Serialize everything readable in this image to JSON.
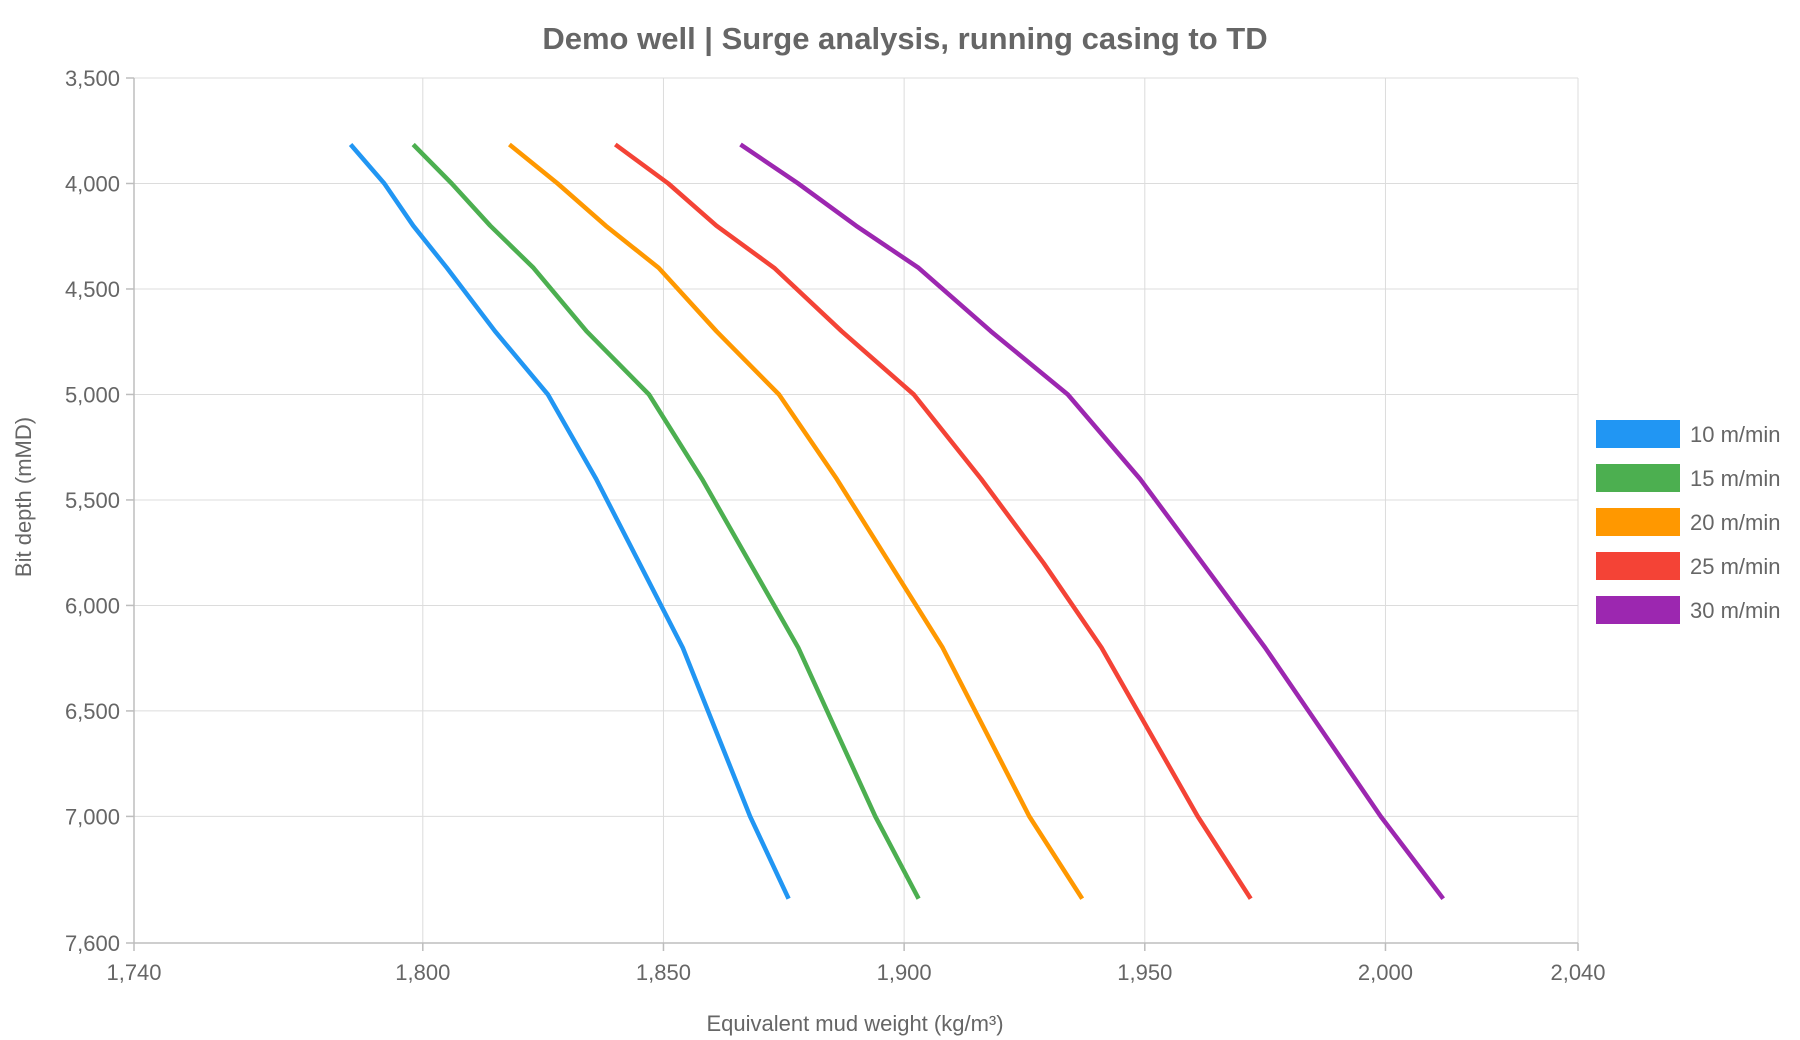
{
  "chart_data": {
    "type": "line",
    "title": "Demo well | Surge analysis, running casing to TD",
    "xlabel": "Equivalent mud weight (kg/m³)",
    "ylabel": "Bit depth (mMD)",
    "xlim": [
      1740,
      2040
    ],
    "ylim": [
      3500,
      7600
    ],
    "y_inverted": true,
    "grid": true,
    "legend_position": "right",
    "x_ticks": [
      1740,
      1800,
      1850,
      1900,
      1950,
      2000,
      2040
    ],
    "x_tick_labels": [
      "1,740",
      "1,800",
      "1,850",
      "1,900",
      "1,950",
      "2,000",
      "2,040"
    ],
    "y_ticks": [
      3500,
      4000,
      4500,
      5000,
      5500,
      6000,
      6500,
      7000,
      7600
    ],
    "y_tick_labels": [
      "3,500",
      "4,000",
      "4,500",
      "5,000",
      "5,500",
      "6,000",
      "6,500",
      "7,000",
      "7,600"
    ],
    "series": [
      {
        "name": "10 m/min",
        "color": "#2196F3",
        "points": [
          [
            1785,
            3815
          ],
          [
            1792,
            4000
          ],
          [
            1798,
            4200
          ],
          [
            1805,
            4400
          ],
          [
            1815,
            4700
          ],
          [
            1826,
            5000
          ],
          [
            1836,
            5400
          ],
          [
            1845,
            5800
          ],
          [
            1854,
            6200
          ],
          [
            1861,
            6600
          ],
          [
            1868,
            7000
          ],
          [
            1876,
            7390
          ]
        ]
      },
      {
        "name": "15 m/min",
        "color": "#4CAF50",
        "points": [
          [
            1798,
            3815
          ],
          [
            1806,
            4000
          ],
          [
            1814,
            4200
          ],
          [
            1823,
            4400
          ],
          [
            1834,
            4700
          ],
          [
            1847,
            5000
          ],
          [
            1858,
            5400
          ],
          [
            1868,
            5800
          ],
          [
            1878,
            6200
          ],
          [
            1886,
            6600
          ],
          [
            1894,
            7000
          ],
          [
            1903,
            7390
          ]
        ]
      },
      {
        "name": "20 m/min",
        "color": "#FF9800",
        "points": [
          [
            1818,
            3815
          ],
          [
            1828,
            4000
          ],
          [
            1838,
            4200
          ],
          [
            1849,
            4400
          ],
          [
            1861,
            4700
          ],
          [
            1874,
            5000
          ],
          [
            1886,
            5400
          ],
          [
            1897,
            5800
          ],
          [
            1908,
            6200
          ],
          [
            1917,
            6600
          ],
          [
            1926,
            7000
          ],
          [
            1937,
            7390
          ]
        ]
      },
      {
        "name": "25 m/min",
        "color": "#F44336",
        "points": [
          [
            1840,
            3815
          ],
          [
            1851,
            4000
          ],
          [
            1861,
            4200
          ],
          [
            1873,
            4400
          ],
          [
            1887,
            4700
          ],
          [
            1902,
            5000
          ],
          [
            1916,
            5400
          ],
          [
            1929,
            5800
          ],
          [
            1941,
            6200
          ],
          [
            1951,
            6600
          ],
          [
            1961,
            7000
          ],
          [
            1972,
            7390
          ]
        ]
      },
      {
        "name": "30 m/min",
        "color": "#9C27B0",
        "points": [
          [
            1866,
            3815
          ],
          [
            1878,
            4000
          ],
          [
            1890,
            4200
          ],
          [
            1903,
            4400
          ],
          [
            1918,
            4700
          ],
          [
            1934,
            5000
          ],
          [
            1949,
            5400
          ],
          [
            1962,
            5800
          ],
          [
            1975,
            6200
          ],
          [
            1987,
            6600
          ],
          [
            1999,
            7000
          ],
          [
            2012,
            7390
          ]
        ]
      }
    ]
  }
}
